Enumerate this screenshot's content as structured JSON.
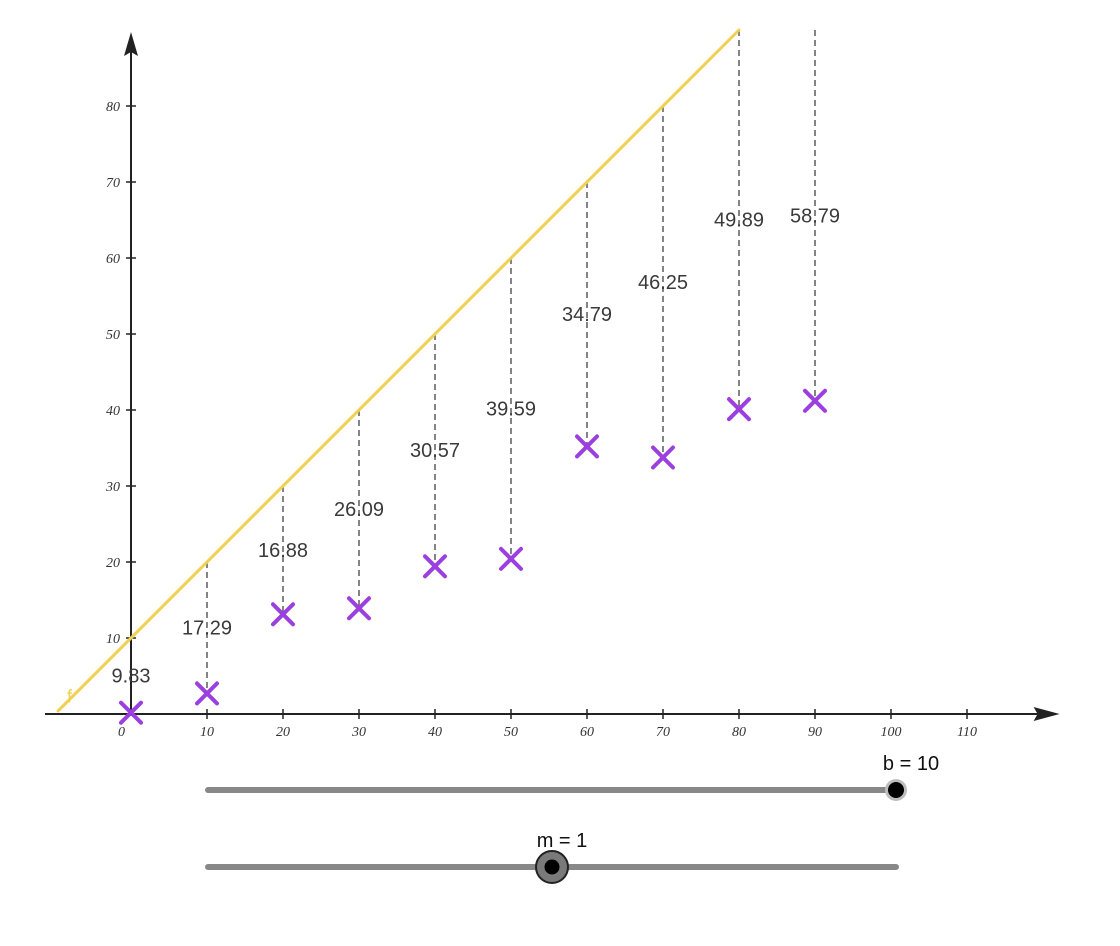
{
  "chart_data": {
    "type": "scatter",
    "x_ticks": [
      "0",
      "10",
      "20",
      "30",
      "40",
      "50",
      "60",
      "70",
      "80",
      "90",
      "100",
      "110"
    ],
    "y_ticks": [
      "10",
      "20",
      "30",
      "40",
      "50",
      "60",
      "70",
      "80"
    ],
    "xlim": [
      -10,
      121
    ],
    "ylim": [
      0,
      90
    ],
    "line": {
      "name": "f",
      "slope": 1,
      "intercept": 10,
      "color": "#f0d050"
    },
    "points": [
      {
        "x": 0,
        "y": 0.17
      },
      {
        "x": 10,
        "y": 2.71
      },
      {
        "x": 20,
        "y": 13.12
      },
      {
        "x": 30,
        "y": 13.91
      },
      {
        "x": 40,
        "y": 19.43
      },
      {
        "x": 50,
        "y": 20.41
      },
      {
        "x": 60,
        "y": 35.21
      },
      {
        "x": 70,
        "y": 33.75
      },
      {
        "x": 80,
        "y": 40.11
      },
      {
        "x": 90,
        "y": 41.21
      }
    ],
    "residual_labels": [
      "9.83",
      "17.29",
      "16.88",
      "26.09",
      "30.57",
      "39.59",
      "34.79",
      "46.25",
      "49.89",
      "58.79"
    ],
    "point_color": "#9b3fe0",
    "residual_color": "#666666",
    "grid": false
  },
  "sliders": [
    {
      "caption": "b = 10",
      "value": 10,
      "min": -90,
      "max": 10
    },
    {
      "caption": "m = 1",
      "value": 1,
      "min": -1.5,
      "max": 3.5
    }
  ]
}
